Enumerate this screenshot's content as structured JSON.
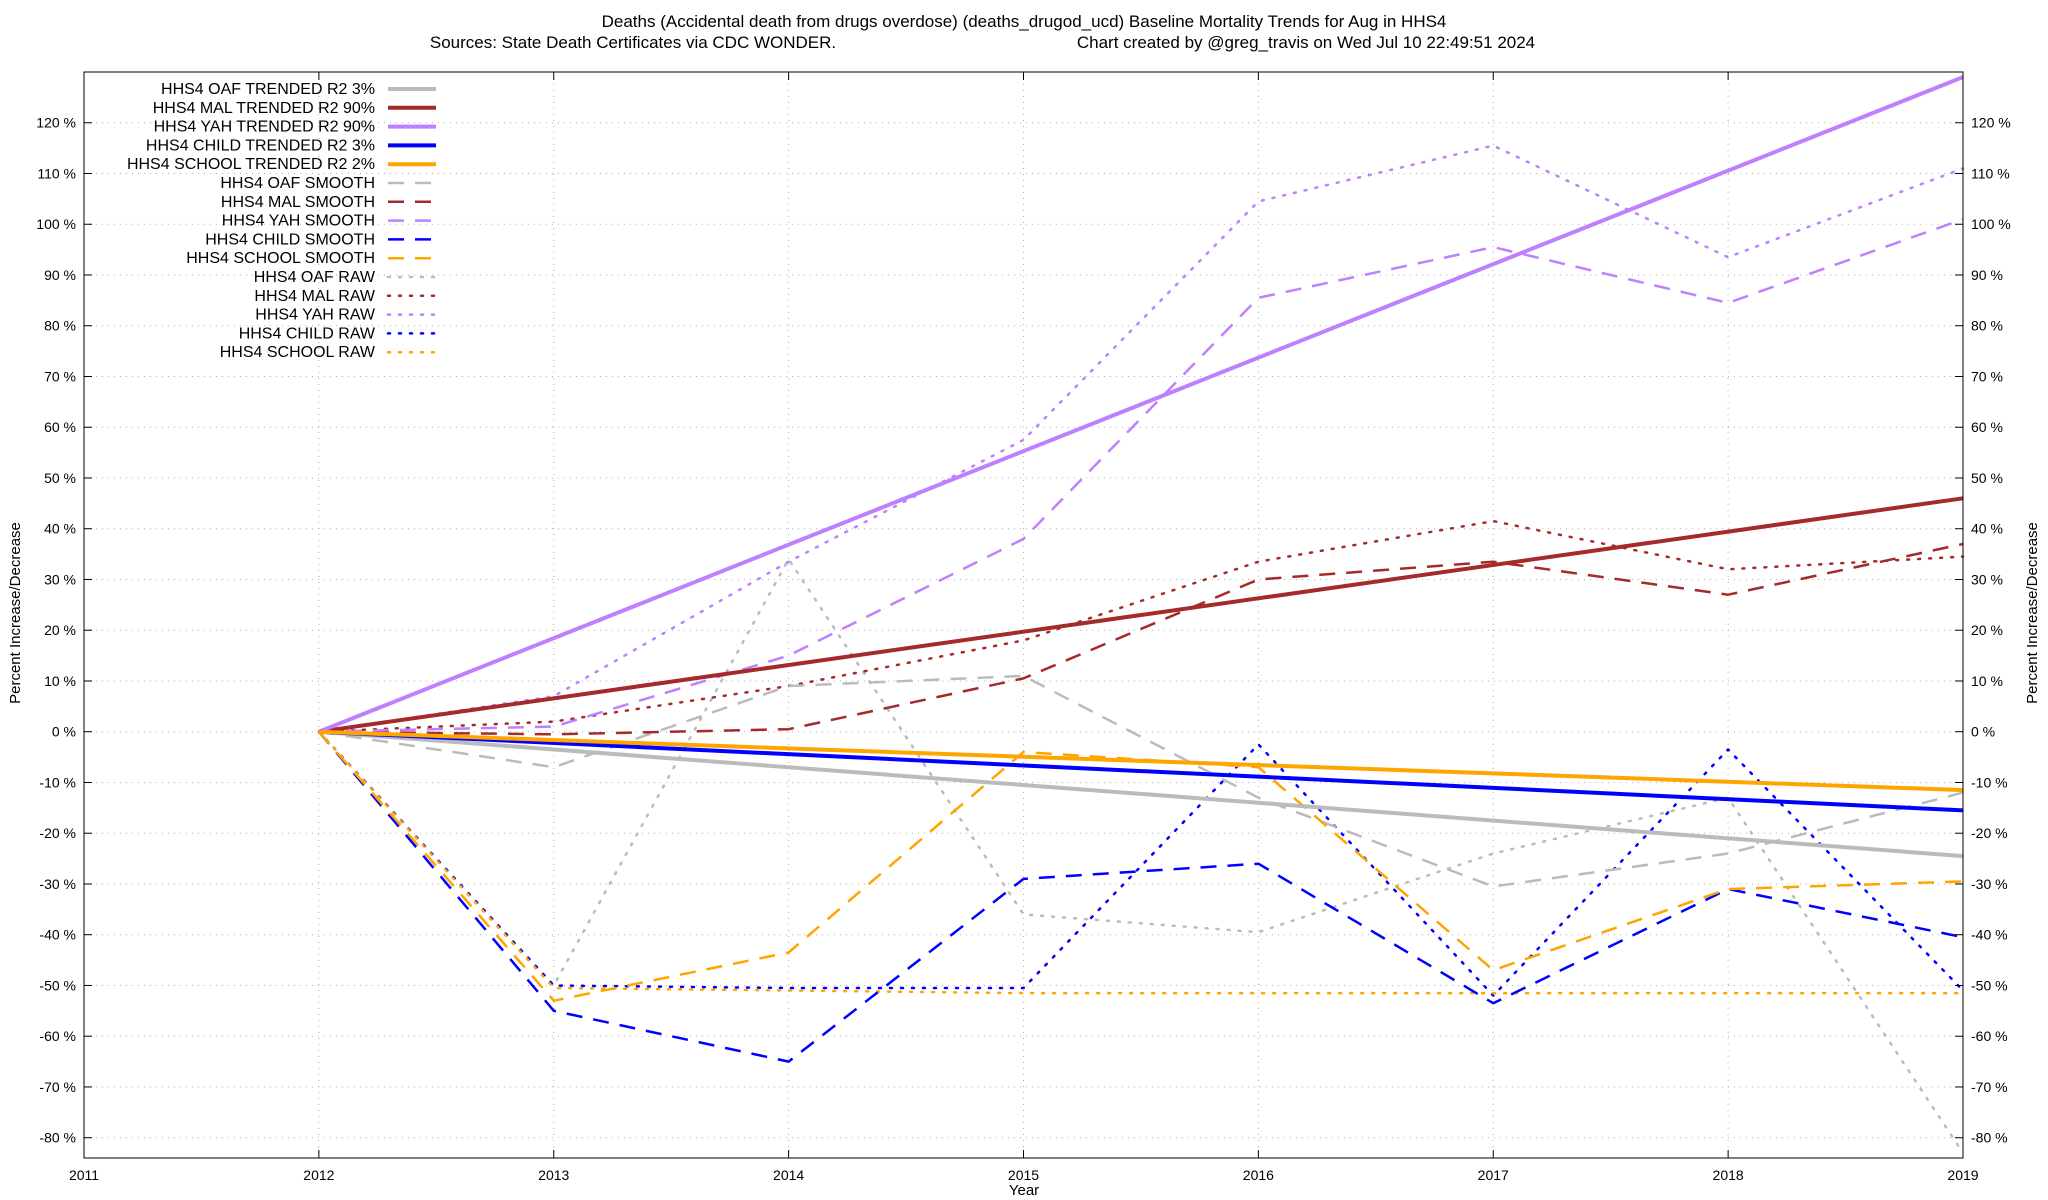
{
  "title": {
    "line1": "Deaths (Accidental death from drugs overdose) (deaths_drugod_ucd)  Baseline Mortality Trends for Aug in HHS4",
    "line2_left": "Sources: State Death Certificates via CDC WONDER.",
    "line2_right": "Chart created by @greg_travis on Wed Jul 10 22:49:51 2024"
  },
  "chart_data": {
    "type": "line",
    "xlabel": "Year",
    "ylabel": "Percent Increase/Decrease",
    "xlim": [
      2011,
      2019
    ],
    "ylim": [
      -84,
      130
    ],
    "x_ticks": [
      2011,
      2012,
      2013,
      2014,
      2015,
      2016,
      2017,
      2018,
      2019
    ],
    "y_ticks": [
      -80,
      -70,
      -60,
      -50,
      -40,
      -30,
      -20,
      -10,
      0,
      10,
      20,
      30,
      40,
      50,
      60,
      70,
      80,
      90,
      100,
      110,
      120
    ],
    "y_tick_suffix": " %",
    "grid": true,
    "legend_position": "top-left",
    "series": [
      {
        "name": "HHS4 OAF TRENDED R2   3%",
        "style": "solid",
        "color": "#bbbbbb",
        "x": [
          2012,
          2019
        ],
        "values": [
          0,
          -24.5
        ]
      },
      {
        "name": "HHS4 MAL TRENDED R2  90%",
        "style": "solid",
        "color": "#a52a2a",
        "x": [
          2012,
          2019
        ],
        "values": [
          0,
          46
        ]
      },
      {
        "name": "HHS4 YAH TRENDED R2  90%",
        "style": "solid",
        "color": "#bf80ff",
        "x": [
          2012,
          2019
        ],
        "values": [
          0,
          129
        ]
      },
      {
        "name": "HHS4 CHILD TRENDED R2   3%",
        "style": "solid",
        "color": "#0000ff",
        "x": [
          2012,
          2019
        ],
        "values": [
          0,
          -15.5
        ]
      },
      {
        "name": "HHS4 SCHOOL TRENDED R2   2%",
        "style": "solid",
        "color": "#ffa500",
        "x": [
          2012,
          2019
        ],
        "values": [
          0,
          -11.5
        ]
      },
      {
        "name": "HHS4 OAF SMOOTH",
        "style": "dashed",
        "color": "#bbbbbb",
        "x": [
          2012,
          2013,
          2014,
          2015,
          2016,
          2017,
          2018,
          2019
        ],
        "values": [
          0,
          -7,
          9,
          11,
          -13,
          -30.5,
          -24,
          -12
        ]
      },
      {
        "name": "HHS4 MAL SMOOTH",
        "style": "dashed",
        "color": "#a52a2a",
        "x": [
          2012,
          2013,
          2014,
          2015,
          2016,
          2017,
          2018,
          2019
        ],
        "values": [
          0,
          -0.5,
          0.5,
          10.5,
          30,
          33.5,
          27,
          37
        ]
      },
      {
        "name": "HHS4 YAH SMOOTH",
        "style": "dashed",
        "color": "#bf80ff",
        "x": [
          2012,
          2013,
          2014,
          2015,
          2016,
          2017,
          2018,
          2019
        ],
        "values": [
          0,
          1,
          15,
          38,
          85.5,
          95.5,
          84.5,
          101
        ]
      },
      {
        "name": "HHS4 CHILD SMOOTH",
        "style": "dashed",
        "color": "#0000ff",
        "x": [
          2012,
          2013,
          2014,
          2015,
          2016,
          2017,
          2018,
          2019
        ],
        "values": [
          0,
          -55,
          -65,
          -29,
          -26,
          -53.5,
          -31,
          -40.5
        ]
      },
      {
        "name": "HHS4 SCHOOL SMOOTH",
        "style": "dashed",
        "color": "#ffa500",
        "x": [
          2012,
          2013,
          2014,
          2015,
          2016,
          2017,
          2018,
          2019
        ],
        "values": [
          0,
          -53,
          -43.5,
          -4,
          -7,
          -47,
          -31,
          -29.5
        ]
      },
      {
        "name": "HHS4 OAF RAW",
        "style": "dotted",
        "color": "#bbbbbb",
        "x": [
          2012,
          2013,
          2014,
          2015,
          2016,
          2017,
          2018,
          2019
        ],
        "values": [
          0,
          -50,
          34,
          -36,
          -39.5,
          -24,
          -13,
          -83
        ]
      },
      {
        "name": "HHS4 MAL RAW",
        "style": "dotted",
        "color": "#a52a2a",
        "x": [
          2012,
          2013,
          2014,
          2015,
          2016,
          2017,
          2018,
          2019
        ],
        "values": [
          0,
          2,
          9,
          18,
          33.5,
          41.5,
          32,
          34.5
        ]
      },
      {
        "name": "HHS4 YAH RAW",
        "style": "dotted",
        "color": "#bf80ff",
        "x": [
          2012,
          2013,
          2014,
          2015,
          2016,
          2017,
          2018,
          2019
        ],
        "values": [
          0,
          7,
          33.5,
          57.5,
          104.5,
          115.5,
          93.5,
          111
        ]
      },
      {
        "name": "HHS4 CHILD RAW",
        "style": "dotted",
        "color": "#0000ff",
        "x": [
          2012,
          2013,
          2014,
          2015,
          2016,
          2017,
          2018,
          2019
        ],
        "values": [
          0,
          -50,
          -50.5,
          -50.5,
          -2.5,
          -52,
          -3.5,
          -51
        ]
      },
      {
        "name": "HHS4 SCHOOL RAW",
        "style": "dotted",
        "color": "#ffa500",
        "x": [
          2012,
          2013,
          2014,
          2015,
          2016,
          2017,
          2018,
          2019
        ],
        "values": [
          0,
          -50.5,
          -51,
          -51.5,
          -51.5,
          -51.5,
          -51.5,
          -51.5
        ]
      }
    ]
  }
}
